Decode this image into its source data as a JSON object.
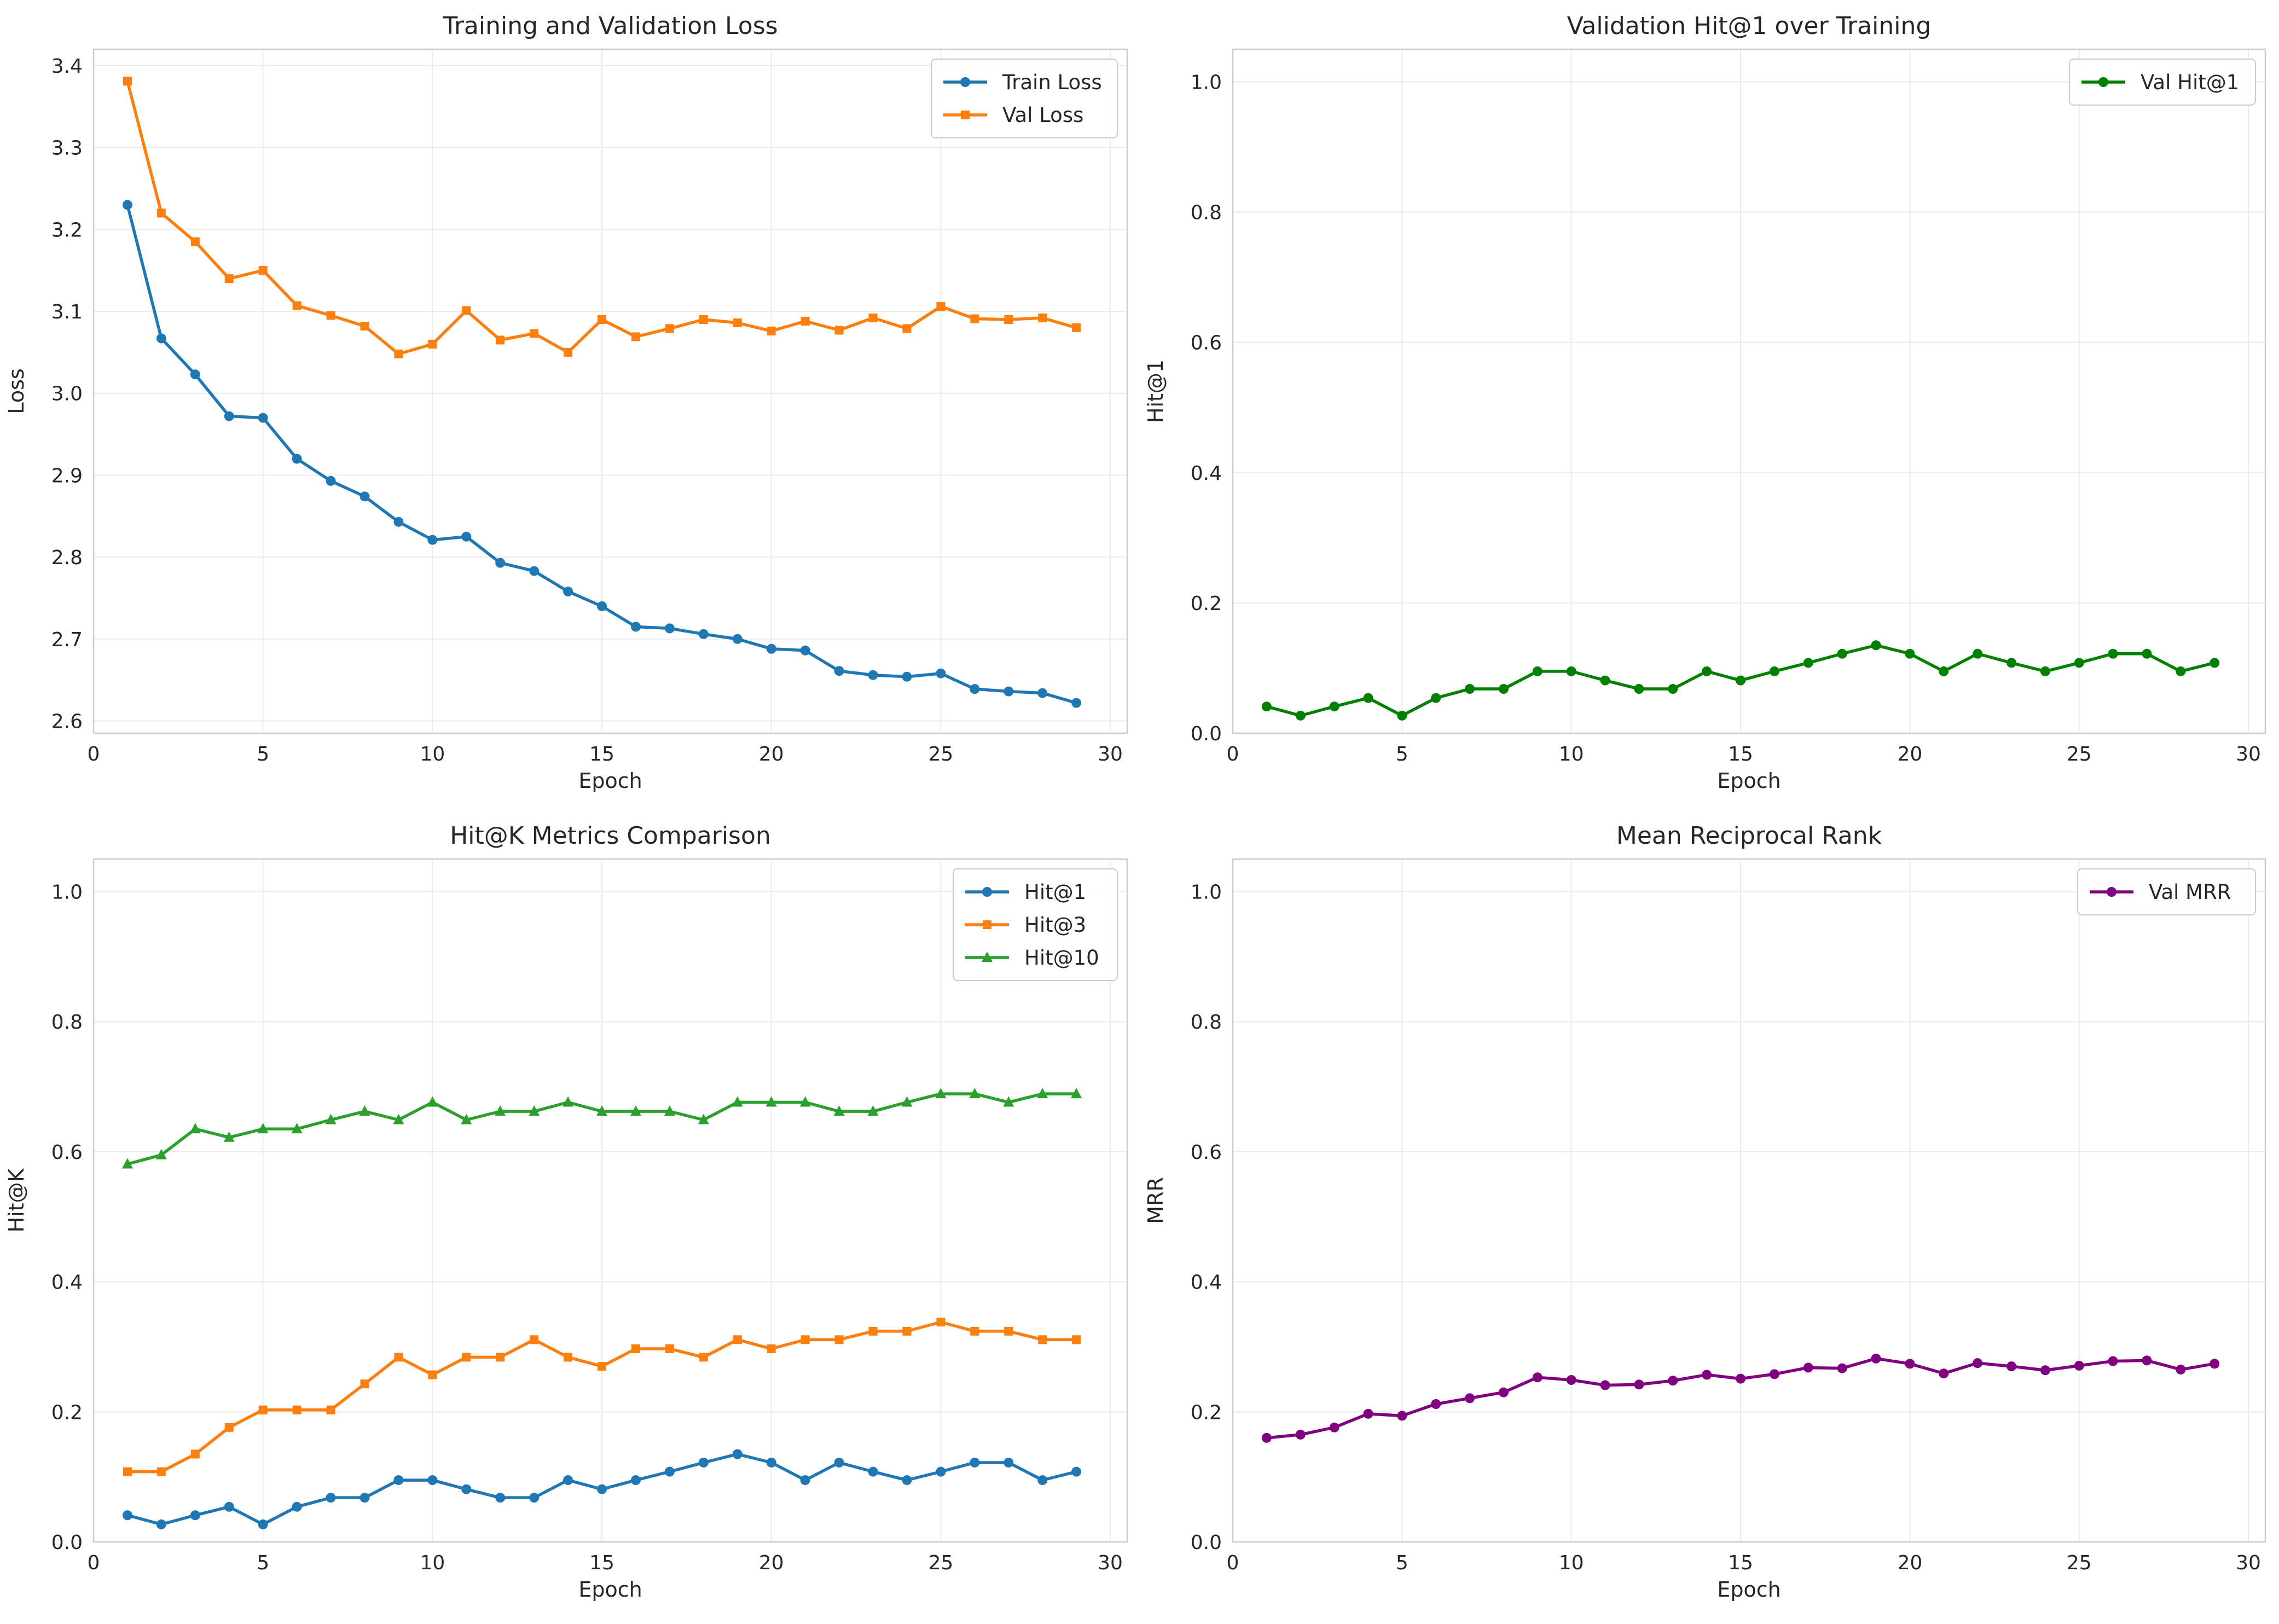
{
  "chart_data": [
    {
      "type": "line",
      "title": "Training and Validation Loss",
      "xlabel": "Epoch",
      "ylabel": "Loss",
      "xlim": [
        0,
        30.5
      ],
      "ylim": [
        2.585,
        3.42
      ],
      "xticks": [
        0,
        5,
        10,
        15,
        20,
        25,
        30
      ],
      "yticks": [
        2.6,
        2.7,
        2.8,
        2.9,
        3.0,
        3.1,
        3.2,
        3.3,
        3.4
      ],
      "ytick_labels": [
        "2.6",
        "2.7",
        "2.8",
        "2.9",
        "3.0",
        "3.1",
        "3.2",
        "3.3",
        "3.4"
      ],
      "grid": true,
      "legend_position": "upper right",
      "x": [
        1,
        2,
        3,
        4,
        5,
        6,
        7,
        8,
        9,
        10,
        11,
        12,
        13,
        14,
        15,
        16,
        17,
        18,
        19,
        20,
        21,
        22,
        23,
        24,
        25,
        26,
        27,
        28,
        29
      ],
      "series": [
        {
          "name": "Train Loss",
          "color": "#1f77b4",
          "marker": "circle",
          "values": [
            3.23,
            3.067,
            3.023,
            2.972,
            2.97,
            2.92,
            2.893,
            2.874,
            2.843,
            2.821,
            2.825,
            2.793,
            2.783,
            2.758,
            2.74,
            2.715,
            2.713,
            2.706,
            2.7,
            2.688,
            2.686,
            2.661,
            2.656,
            2.654,
            2.658,
            2.639,
            2.636,
            2.634,
            2.622
          ]
        },
        {
          "name": "Val Loss",
          "color": "#ff7f0e",
          "marker": "square",
          "values": [
            3.381,
            3.22,
            3.185,
            3.14,
            3.15,
            3.107,
            3.095,
            3.082,
            3.048,
            3.06,
            3.101,
            3.065,
            3.073,
            3.05,
            3.09,
            3.069,
            3.079,
            3.09,
            3.086,
            3.076,
            3.088,
            3.077,
            3.092,
            3.079,
            3.106,
            3.091,
            3.09,
            3.092,
            3.08
          ]
        }
      ]
    },
    {
      "type": "line",
      "title": "Validation Hit@1 over Training",
      "xlabel": "Epoch",
      "ylabel": "Hit@1",
      "xlim": [
        0,
        30.5
      ],
      "ylim": [
        0,
        1.05
      ],
      "xticks": [
        0,
        5,
        10,
        15,
        20,
        25,
        30
      ],
      "yticks": [
        0,
        0.2,
        0.4,
        0.6,
        0.8,
        1.0
      ],
      "ytick_labels": [
        "0.0",
        "0.2",
        "0.4",
        "0.6",
        "0.8",
        "1.0"
      ],
      "grid": true,
      "legend_position": "upper right",
      "x": [
        1,
        2,
        3,
        4,
        5,
        6,
        7,
        8,
        9,
        10,
        11,
        12,
        13,
        14,
        15,
        16,
        17,
        18,
        19,
        20,
        21,
        22,
        23,
        24,
        25,
        26,
        27,
        28,
        29
      ],
      "series": [
        {
          "name": "Val Hit@1",
          "color": "#008000",
          "marker": "circle",
          "values": [
            0.041,
            0.027,
            0.041,
            0.054,
            0.027,
            0.054,
            0.068,
            0.068,
            0.095,
            0.095,
            0.081,
            0.068,
            0.068,
            0.095,
            0.081,
            0.095,
            0.108,
            0.122,
            0.135,
            0.122,
            0.095,
            0.122,
            0.108,
            0.095,
            0.108,
            0.122,
            0.122,
            0.095,
            0.108
          ]
        }
      ]
    },
    {
      "type": "line",
      "title": "Hit@K Metrics Comparison",
      "xlabel": "Epoch",
      "ylabel": "Hit@K",
      "xlim": [
        0,
        30.5
      ],
      "ylim": [
        0,
        1.05
      ],
      "xticks": [
        0,
        5,
        10,
        15,
        20,
        25,
        30
      ],
      "yticks": [
        0,
        0.2,
        0.4,
        0.6,
        0.8,
        1.0
      ],
      "ytick_labels": [
        "0.0",
        "0.2",
        "0.4",
        "0.6",
        "0.8",
        "1.0"
      ],
      "grid": true,
      "legend_position": "upper right",
      "x": [
        1,
        2,
        3,
        4,
        5,
        6,
        7,
        8,
        9,
        10,
        11,
        12,
        13,
        14,
        15,
        16,
        17,
        18,
        19,
        20,
        21,
        22,
        23,
        24,
        25,
        26,
        27,
        28,
        29
      ],
      "series": [
        {
          "name": "Hit@1",
          "color": "#1f77b4",
          "marker": "circle",
          "values": [
            0.041,
            0.027,
            0.041,
            0.054,
            0.027,
            0.054,
            0.068,
            0.068,
            0.095,
            0.095,
            0.081,
            0.068,
            0.068,
            0.095,
            0.081,
            0.095,
            0.108,
            0.122,
            0.135,
            0.122,
            0.095,
            0.122,
            0.108,
            0.095,
            0.108,
            0.122,
            0.122,
            0.095,
            0.108
          ]
        },
        {
          "name": "Hit@3",
          "color": "#ff7f0e",
          "marker": "square",
          "values": [
            0.108,
            0.108,
            0.135,
            0.176,
            0.203,
            0.203,
            0.203,
            0.243,
            0.284,
            0.257,
            0.284,
            0.284,
            0.311,
            0.284,
            0.27,
            0.297,
            0.297,
            0.284,
            0.311,
            0.297,
            0.311,
            0.311,
            0.324,
            0.324,
            0.338,
            0.324,
            0.324,
            0.311,
            0.311
          ]
        },
        {
          "name": "Hit@10",
          "color": "#2ca02c",
          "marker": "triangle",
          "values": [
            0.581,
            0.595,
            0.635,
            0.622,
            0.635,
            0.635,
            0.649,
            0.662,
            0.649,
            0.676,
            0.649,
            0.662,
            0.662,
            0.676,
            0.662,
            0.662,
            0.662,
            0.649,
            0.676,
            0.676,
            0.676,
            0.662,
            0.662,
            0.676,
            0.689,
            0.689,
            0.676,
            0.689,
            0.689
          ]
        }
      ]
    },
    {
      "type": "line",
      "title": "Mean Reciprocal Rank",
      "xlabel": "Epoch",
      "ylabel": "MRR",
      "xlim": [
        0,
        30.5
      ],
      "ylim": [
        0,
        1.05
      ],
      "xticks": [
        0,
        5,
        10,
        15,
        20,
        25,
        30
      ],
      "yticks": [
        0,
        0.2,
        0.4,
        0.6,
        0.8,
        1.0
      ],
      "ytick_labels": [
        "0.0",
        "0.2",
        "0.4",
        "0.6",
        "0.8",
        "1.0"
      ],
      "grid": true,
      "legend_position": "upper right",
      "x": [
        1,
        2,
        3,
        4,
        5,
        6,
        7,
        8,
        9,
        10,
        11,
        12,
        13,
        14,
        15,
        16,
        17,
        18,
        19,
        20,
        21,
        22,
        23,
        24,
        25,
        26,
        27,
        28,
        29
      ],
      "series": [
        {
          "name": "Val MRR",
          "color": "#800080",
          "marker": "circle",
          "values": [
            0.16,
            0.165,
            0.176,
            0.197,
            0.194,
            0.212,
            0.221,
            0.23,
            0.253,
            0.249,
            0.241,
            0.242,
            0.248,
            0.257,
            0.251,
            0.258,
            0.268,
            0.267,
            0.282,
            0.274,
            0.259,
            0.275,
            0.27,
            0.264,
            0.271,
            0.278,
            0.279,
            0.265,
            0.274
          ]
        }
      ]
    }
  ]
}
